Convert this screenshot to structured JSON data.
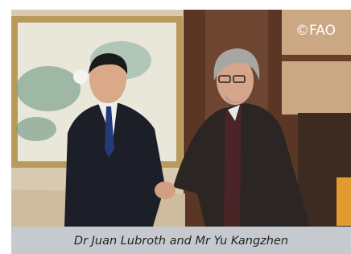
{
  "photo": {
    "watermark": "©FAO"
  },
  "caption": "Dr Juan Lubroth and Mr Yu Kangzhen"
}
